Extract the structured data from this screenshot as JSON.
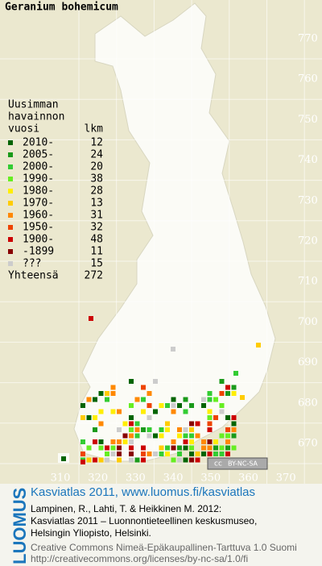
{
  "title": "Geranium bohemicum",
  "legend": {
    "heading": [
      "Uusimman",
      "havainnon"
    ],
    "columns": [
      "vuosi",
      "lkm"
    ],
    "rows": [
      {
        "label": "2010-",
        "count": 12,
        "color": "#006400"
      },
      {
        "label": "2005-",
        "count": 24,
        "color": "#1a9a1a"
      },
      {
        "label": "2000-",
        "count": 20,
        "color": "#33cc33"
      },
      {
        "label": "1990-",
        "count": 38,
        "color": "#66ee22"
      },
      {
        "label": "1980-",
        "count": 28,
        "color": "#ffee00"
      },
      {
        "label": "1970-",
        "count": 13,
        "color": "#ffcc00"
      },
      {
        "label": "1960-",
        "count": 31,
        "color": "#ff8800"
      },
      {
        "label": "1950-",
        "count": 32,
        "color": "#ee4400"
      },
      {
        "label": "1900-",
        "count": 48,
        "color": "#cc0000"
      },
      {
        "label": "-1899",
        "count": 11,
        "color": "#880000"
      },
      {
        "label": "???",
        "count": 15,
        "color": "#cccccc"
      }
    ],
    "total_label": "Yhteensä",
    "total": 272
  },
  "grid": {
    "y_labels": [
      770,
      760,
      750,
      740,
      730,
      720,
      710,
      700,
      690,
      680,
      670
    ],
    "x_labels": [
      310,
      320,
      330,
      340,
      350,
      360,
      370
    ]
  },
  "badge": {
    "cc": "cc",
    "license": "BY-NC-SA"
  },
  "footer": {
    "logo": "LUOMUS",
    "link": "Kasviatlas 2011, www.luomus.fi/kasviatlas",
    "citation": [
      "Lampinen, R., Lahti, T. & Heikkinen M. 2012:",
      "Kasviatlas 2011 – Luonnontieteellinen keskusmuseo,",
      "Helsingin Yliopisto, Helsinki."
    ],
    "license": [
      "Creative Commons Nimeä-Epäkaupallinen-Tarttuva 1.0 Suomi",
      "http://creativecommons.org/licenses/by-nc-sa/1.0/fi"
    ]
  }
}
